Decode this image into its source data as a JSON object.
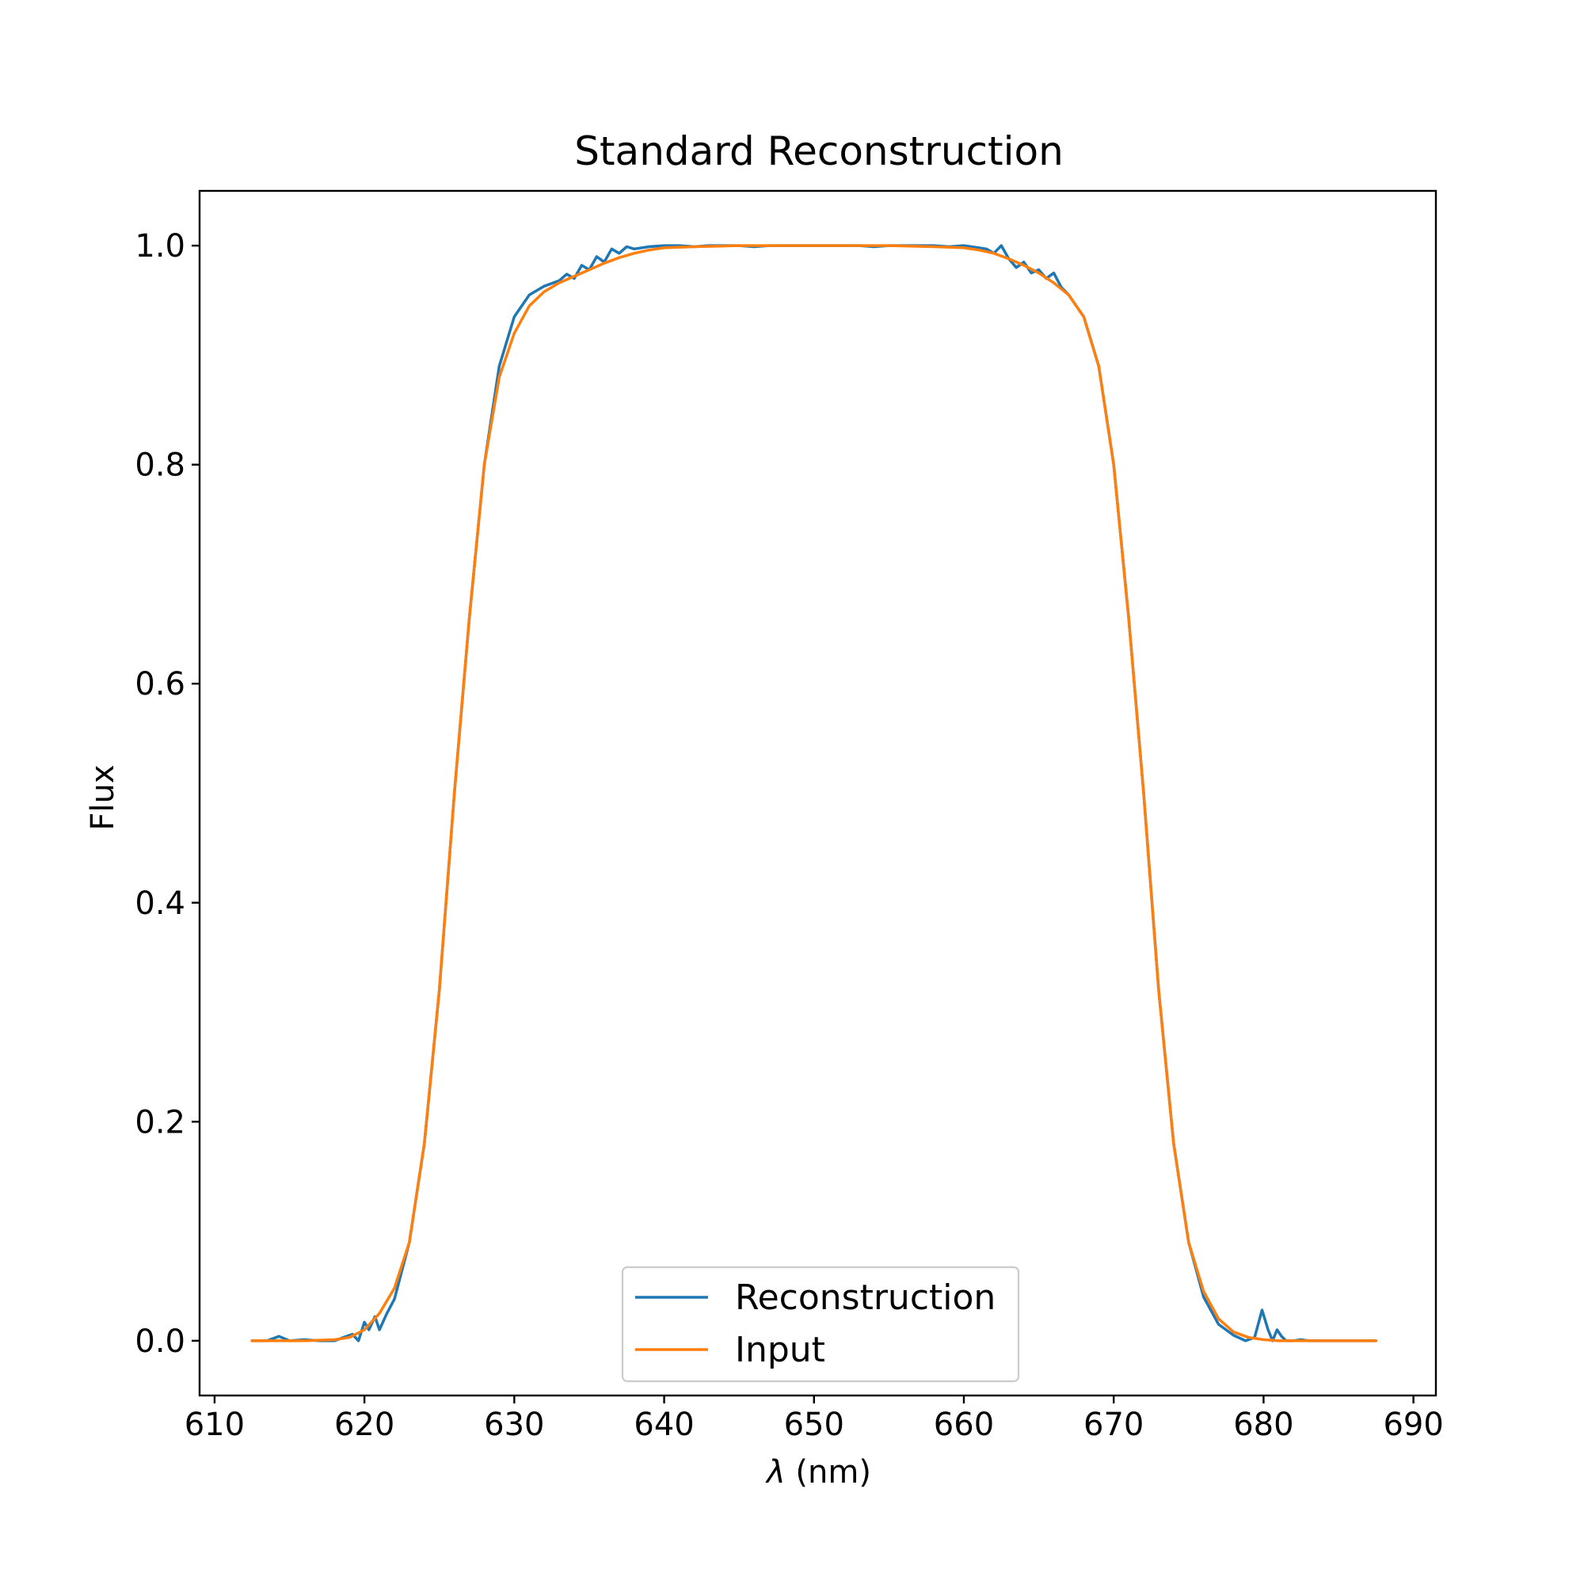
{
  "chart_data": {
    "type": "line",
    "title": "Standard Reconstruction",
    "xlabel_symbol": "λ",
    "xlabel_unit": " (nm)",
    "ylabel": "Flux",
    "xlim": [
      609,
      691.5
    ],
    "ylim": [
      -0.05,
      1.05
    ],
    "x_ticks": [
      610,
      620,
      630,
      640,
      650,
      660,
      670,
      680,
      690
    ],
    "y_ticks": [
      0.0,
      0.2,
      0.4,
      0.6,
      0.8,
      1.0
    ],
    "x_tick_labels": [
      "610",
      "620",
      "630",
      "640",
      "650",
      "660",
      "670",
      "680",
      "690"
    ],
    "y_tick_labels": [
      "0.0",
      "0.2",
      "0.4",
      "0.6",
      "0.8",
      "1.0"
    ],
    "grid": false,
    "legend_position": "bottom-center",
    "series": [
      {
        "name": "Reconstruction",
        "color": "#1f77b4",
        "x": [
          612.5,
          613.5,
          614.3,
          615,
          616,
          617,
          618,
          618.6,
          619.2,
          619.6,
          620,
          620.3,
          620.7,
          621,
          621.5,
          622,
          623,
          624,
          625,
          626,
          627,
          628,
          629,
          630,
          631,
          632,
          633,
          633.5,
          634,
          634.5,
          635,
          635.5,
          636,
          636.5,
          637,
          637.5,
          638,
          639,
          640,
          641,
          642,
          643,
          644,
          645,
          646,
          647,
          648,
          649,
          650,
          651,
          652,
          653,
          654,
          655,
          656,
          657,
          658,
          659,
          660,
          661,
          661.5,
          662,
          662.5,
          663,
          663.5,
          664,
          664.5,
          665,
          665.5,
          666,
          666.5,
          667,
          668,
          669,
          670,
          671,
          672,
          673,
          674,
          675,
          676,
          677,
          678,
          678.8,
          679.4,
          679.9,
          680.3,
          680.6,
          680.9,
          681.2,
          681.5,
          682,
          682.5,
          683,
          684,
          685,
          686,
          687.5
        ],
        "y": [
          0.0,
          0.0,
          0.004,
          0.0,
          0.001,
          0.0,
          0.0,
          0.003,
          0.006,
          0.0,
          0.017,
          0.01,
          0.022,
          0.01,
          0.025,
          0.038,
          0.09,
          0.18,
          0.32,
          0.5,
          0.66,
          0.8,
          0.89,
          0.935,
          0.955,
          0.963,
          0.968,
          0.974,
          0.97,
          0.982,
          0.978,
          0.99,
          0.985,
          0.997,
          0.993,
          0.999,
          0.997,
          0.999,
          1.0,
          1.0,
          0.999,
          1.0,
          1.0,
          1.0,
          0.999,
          1.0,
          1.0,
          1.0,
          1.0,
          1.0,
          1.0,
          1.0,
          0.999,
          1.0,
          1.0,
          1.0,
          1.0,
          0.999,
          1.0,
          0.998,
          0.997,
          0.993,
          1.0,
          0.988,
          0.98,
          0.985,
          0.975,
          0.978,
          0.97,
          0.975,
          0.962,
          0.955,
          0.935,
          0.89,
          0.8,
          0.66,
          0.5,
          0.32,
          0.18,
          0.09,
          0.04,
          0.015,
          0.005,
          0.0,
          0.003,
          0.028,
          0.01,
          0.0,
          0.01,
          0.004,
          0.0,
          0.0,
          0.001,
          0.0,
          0.0,
          0.0,
          0.0,
          0.0
        ]
      },
      {
        "name": "Input",
        "color": "#ff7f0e",
        "x": [
          612.5,
          614,
          616,
          618,
          619,
          620,
          621,
          622,
          623,
          624,
          625,
          626,
          627,
          628,
          629,
          630,
          631,
          632,
          633,
          634,
          635,
          636,
          637,
          638,
          639,
          640,
          642,
          645,
          650,
          655,
          658,
          660,
          661,
          662,
          663,
          664,
          665,
          666,
          667,
          668,
          669,
          670,
          671,
          672,
          673,
          674,
          675,
          676,
          677,
          678,
          679,
          680,
          681,
          682,
          684,
          686,
          687.5
        ],
        "y": [
          0.0,
          0.0,
          0.0,
          0.001,
          0.003,
          0.01,
          0.025,
          0.048,
          0.09,
          0.18,
          0.32,
          0.5,
          0.66,
          0.8,
          0.88,
          0.92,
          0.945,
          0.958,
          0.966,
          0.972,
          0.978,
          0.984,
          0.989,
          0.993,
          0.996,
          0.998,
          0.999,
          1.0,
          1.0,
          1.0,
          0.999,
          0.998,
          0.996,
          0.993,
          0.988,
          0.982,
          0.975,
          0.966,
          0.955,
          0.935,
          0.89,
          0.8,
          0.66,
          0.5,
          0.32,
          0.18,
          0.09,
          0.045,
          0.02,
          0.008,
          0.003,
          0.001,
          0.0,
          0.0,
          0.0,
          0.0,
          0.0
        ]
      }
    ]
  }
}
